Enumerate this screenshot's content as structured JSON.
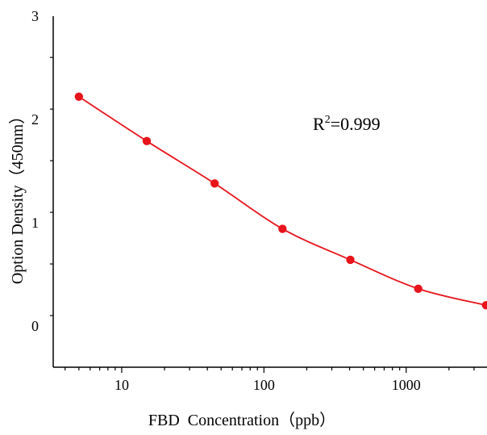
{
  "chart_data": {
    "type": "scatter",
    "x_scale": "log",
    "xlim": [
      3.3,
      3700
    ],
    "ylim": [
      -0.4,
      3
    ],
    "xlabel": "FBD  Concentration（ppb）",
    "ylabel": "Option Density（450nm）",
    "x_tick_labels": [
      "10",
      "100",
      "1000"
    ],
    "y_tick_labels": [
      "0",
      "1",
      "2",
      "3"
    ],
    "annotation": {
      "base": "R",
      "superscript": "2",
      "rest": "=0.999"
    },
    "series": [
      {
        "x": [
          5,
          15,
          45,
          135,
          405,
          1215,
          3645
        ],
        "y": [
          2.22,
          1.79,
          1.38,
          0.94,
          0.64,
          0.36,
          0.2
        ],
        "marker": "circle",
        "fit_line": true
      }
    ],
    "grid": false,
    "colors": {
      "series": "#e8141b",
      "axis": "#000000"
    }
  }
}
